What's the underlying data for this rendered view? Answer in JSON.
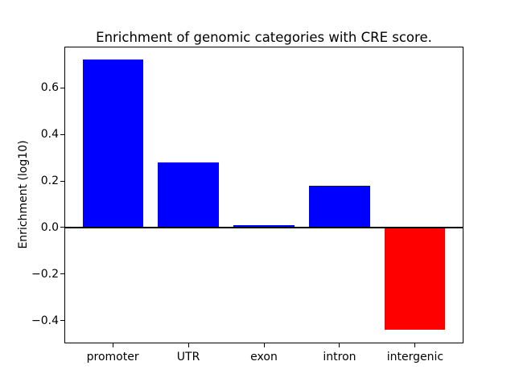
{
  "chart_data": {
    "type": "bar",
    "title": "Enrichment of genomic categories with CRE score.",
    "ylabel": "Enrichment (log10)",
    "xlabel": "",
    "categories": [
      "promoter",
      "UTR",
      "exon",
      "intron",
      "intergenic"
    ],
    "values": [
      0.72,
      0.28,
      0.01,
      0.18,
      -0.44
    ],
    "positive_color": "#0000ff",
    "negative_color": "#ff0000",
    "axis_color": "#000000",
    "text_color": "#000000",
    "background_color": "#ffffff",
    "xlim": [
      -0.64,
      4.64
    ],
    "ylim": [
      -0.498,
      0.778
    ],
    "ytick_values": [
      0.6,
      0.4,
      0.2,
      0.0,
      -0.2,
      -0.4
    ],
    "ytick_labels": [
      "0.6",
      "0.4",
      "0.2",
      "0.0",
      "−0.2",
      "−0.4"
    ],
    "bar_width": 0.8,
    "zero_line": true,
    "grid": false,
    "legend": false
  }
}
